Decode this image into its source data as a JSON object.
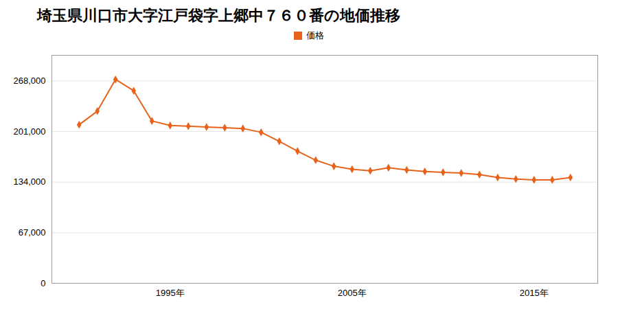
{
  "chart_data": {
    "type": "line",
    "title": "埼玉県川口市大字江戸袋字上郷中７６０番の地価推移",
    "x": [
      1990,
      1991,
      1992,
      1993,
      1994,
      1995,
      1996,
      1997,
      1998,
      1999,
      2000,
      2001,
      2002,
      2003,
      2004,
      2005,
      2006,
      2007,
      2008,
      2009,
      2010,
      2011,
      2012,
      2013,
      2014,
      2015,
      2016,
      2017
    ],
    "series": [
      {
        "name": "価格",
        "color": "#E8621A",
        "marker": "diamond",
        "values": [
          210000,
          228000,
          270000,
          255000,
          215000,
          209000,
          208000,
          207000,
          206000,
          205000,
          200000,
          188000,
          175000,
          163000,
          155000,
          151000,
          149000,
          153000,
          150000,
          148000,
          147000,
          146000,
          144000,
          140000,
          138000,
          137000,
          137000,
          140000
        ]
      }
    ],
    "xlim": [
      1988.5,
      2018.5
    ],
    "xticks": [
      {
        "value": 1995,
        "label": "1995年"
      },
      {
        "value": 2005,
        "label": "2005年"
      },
      {
        "value": 2015,
        "label": "2015年"
      }
    ],
    "ylim": [
      0,
      302000
    ],
    "yticks": [
      0,
      {
        "value": 67000,
        "label": "67,000"
      },
      {
        "value": 134000,
        "label": "134,000"
      },
      {
        "value": 201000,
        "label": "201,000"
      },
      {
        "value": 268000,
        "label": "268,000"
      }
    ],
    "grid": "y",
    "legend": "top"
  }
}
